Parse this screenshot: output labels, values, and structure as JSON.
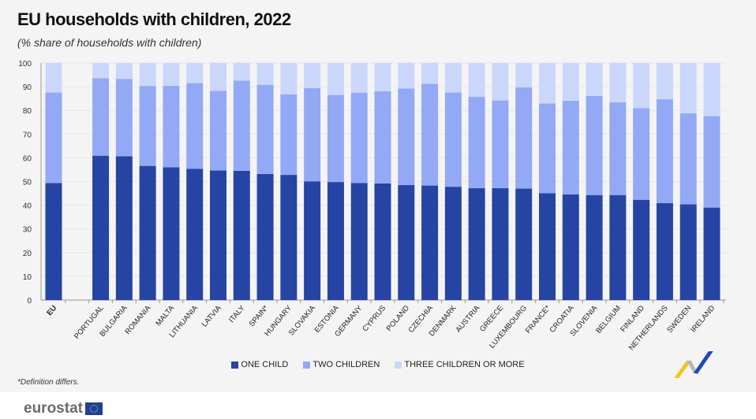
{
  "header": {
    "title": "EU households with children, 2022",
    "subtitle": "(%  share of households with children)"
  },
  "footnote": "*Definition differs.",
  "brand": {
    "logo": "eurostat"
  },
  "chart_data": {
    "type": "bar",
    "stacked": true,
    "title": "EU households with children, 2022",
    "subtitle": "(%  share of households with children)",
    "ylim": [
      0,
      100
    ],
    "yticks": [
      0,
      10,
      20,
      30,
      40,
      50,
      60,
      70,
      80,
      90,
      100
    ],
    "grid": true,
    "legend_position": "bottom",
    "categories": [
      "EU",
      "",
      "PORTUGAL",
      "BULGARIA",
      "ROMANIA",
      "MALTA",
      "LITHUANIA",
      "LATVIA",
      "ITALY",
      "SPAIN*",
      "HUNGARY",
      "SLOVAKIA",
      "ESTONIA",
      "GERMANY",
      "CYPRUS",
      "POLAND",
      "CZECHIA",
      "DENMARK",
      "AUSTRIA",
      "GREECE",
      "LUXEMBOURG",
      "FRANCE*",
      "CROATIA",
      "SLOVENIA",
      "BELGIUM",
      "FINLAND",
      "NETHERLANDS",
      "SWEDEN",
      "IRELAND"
    ],
    "series": [
      {
        "name": "ONE CHILD",
        "color": "#2644a3",
        "values": [
          49.4,
          null,
          60.9,
          60.7,
          56.6,
          56.0,
          55.4,
          54.7,
          54.5,
          53.2,
          52.8,
          50.1,
          49.8,
          49.4,
          49.2,
          48.5,
          48.3,
          47.8,
          47.2,
          47.2,
          47.0,
          45.1,
          44.6,
          44.3,
          44.3,
          42.3,
          40.9,
          40.4,
          39.0
        ]
      },
      {
        "name": "TWO CHILDREN",
        "color": "#93a9f5",
        "values": [
          38.2,
          null,
          32.7,
          32.6,
          33.7,
          34.4,
          36.1,
          33.5,
          38.1,
          37.6,
          34.0,
          39.3,
          36.7,
          38.1,
          38.9,
          40.7,
          42.9,
          39.8,
          38.6,
          37.0,
          42.7,
          37.8,
          39.5,
          41.8,
          39.1,
          38.6,
          43.8,
          38.4,
          38.6
        ]
      },
      {
        "name": "THREE CHILDREN OR MORE",
        "color": "#cbd6fb",
        "values": [
          12.4,
          null,
          6.4,
          6.7,
          9.7,
          9.6,
          8.5,
          11.8,
          7.4,
          9.2,
          13.2,
          10.6,
          13.5,
          12.5,
          11.9,
          10.8,
          8.8,
          12.4,
          14.2,
          15.8,
          10.3,
          17.1,
          15.9,
          13.9,
          16.6,
          19.1,
          15.3,
          21.2,
          22.4
        ]
      }
    ]
  }
}
